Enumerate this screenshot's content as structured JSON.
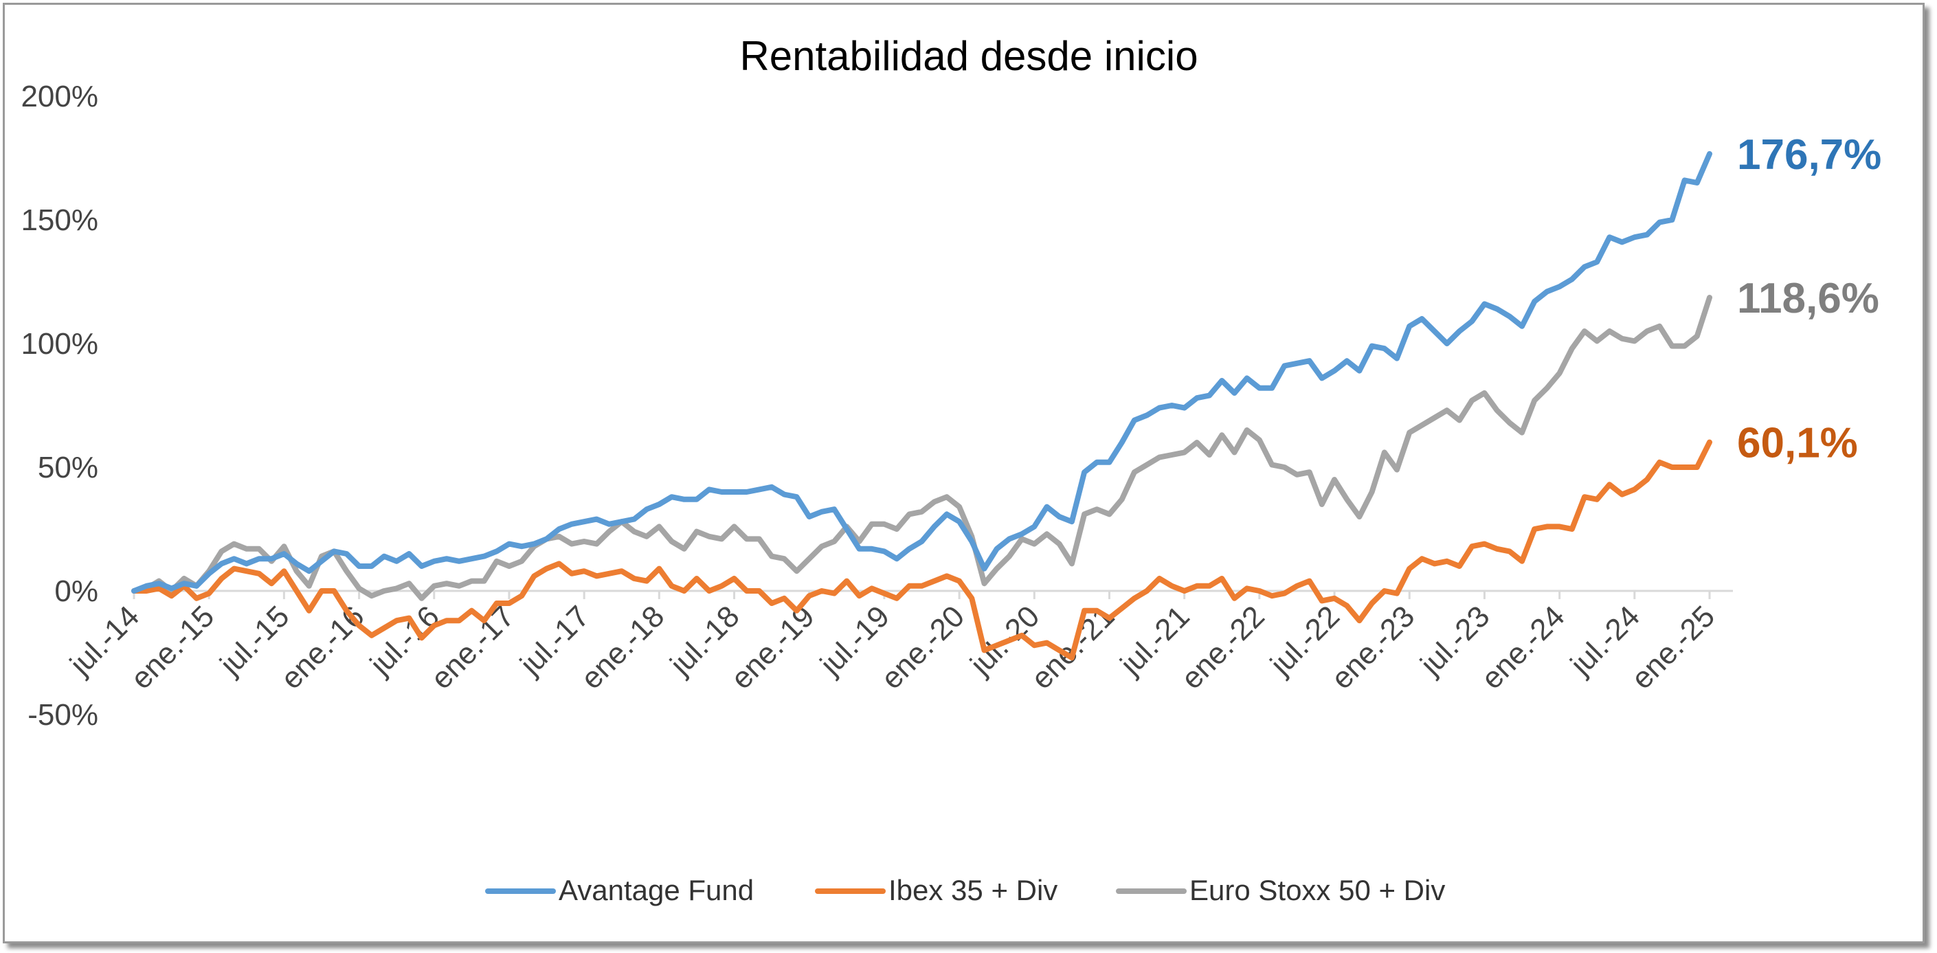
{
  "chart_data": {
    "type": "line",
    "title": "Rentabilidad desde inicio",
    "xlabel": "",
    "ylabel": "",
    "ylim": [
      -0.5,
      2.0
    ],
    "yticks": [
      "200%",
      "150%",
      "100%",
      "50%",
      "0%",
      "-50%"
    ],
    "yticks_values": [
      2.0,
      1.5,
      1.0,
      0.5,
      0.0,
      -0.5
    ],
    "xtick_labels": [
      "jul.-14",
      "ene.-15",
      "jul.-15",
      "ene.-16",
      "jul.-16",
      "ene.-17",
      "jul.-17",
      "ene.-18",
      "jul.-18",
      "ene.-19",
      "jul.-19",
      "ene.-20",
      "jul.-20",
      "ene.-21",
      "jul.-21",
      "ene.-22",
      "jul.-22",
      "ene.-23",
      "jul.-23",
      "ene.-24",
      "jul.-24",
      "ene.-25"
    ],
    "x_start": "2014-07",
    "x_end": "2025-01",
    "grid": false,
    "legend_position": "bottom",
    "series": [
      {
        "name": "Avantage Fund",
        "color": "#5B9BD5",
        "end_label": "176,7%",
        "end_label_color": "#2E75B6",
        "values": [
          0.0,
          0.02,
          0.03,
          0.01,
          0.03,
          0.02,
          0.07,
          0.11,
          0.13,
          0.11,
          0.13,
          0.13,
          0.15,
          0.11,
          0.08,
          0.12,
          0.16,
          0.15,
          0.1,
          0.1,
          0.14,
          0.12,
          0.15,
          0.1,
          0.12,
          0.13,
          0.12,
          0.13,
          0.14,
          0.16,
          0.19,
          0.18,
          0.19,
          0.21,
          0.25,
          0.27,
          0.28,
          0.29,
          0.27,
          0.28,
          0.29,
          0.33,
          0.35,
          0.38,
          0.37,
          0.37,
          0.41,
          0.4,
          0.4,
          0.4,
          0.41,
          0.42,
          0.39,
          0.38,
          0.3,
          0.32,
          0.33,
          0.25,
          0.17,
          0.17,
          0.16,
          0.13,
          0.17,
          0.2,
          0.26,
          0.31,
          0.28,
          0.2,
          0.09,
          0.17,
          0.21,
          0.23,
          0.26,
          0.34,
          0.3,
          0.28,
          0.48,
          0.52,
          0.52,
          0.6,
          0.69,
          0.71,
          0.74,
          0.75,
          0.74,
          0.78,
          0.79,
          0.85,
          0.8,
          0.86,
          0.82,
          0.82,
          0.91,
          0.92,
          0.93,
          0.86,
          0.89,
          0.93,
          0.89,
          0.99,
          0.98,
          0.94,
          1.07,
          1.1,
          1.05,
          1.0,
          1.05,
          1.09,
          1.16,
          1.14,
          1.11,
          1.07,
          1.17,
          1.21,
          1.23,
          1.26,
          1.31,
          1.33,
          1.43,
          1.41,
          1.43,
          1.44,
          1.49,
          1.5,
          1.66,
          1.65,
          1.767
        ]
      },
      {
        "name": "Ibex 35 + Div",
        "color": "#ED7D31",
        "end_label": "60,1%",
        "end_label_color": "#C55A11",
        "values": [
          0.0,
          0.0,
          0.01,
          -0.02,
          0.02,
          -0.03,
          -0.01,
          0.05,
          0.09,
          0.08,
          0.07,
          0.03,
          0.08,
          0.0,
          -0.08,
          0.0,
          0.0,
          -0.08,
          -0.14,
          -0.18,
          -0.15,
          -0.12,
          -0.11,
          -0.19,
          -0.14,
          -0.12,
          -0.12,
          -0.08,
          -0.12,
          -0.05,
          -0.05,
          -0.02,
          0.06,
          0.09,
          0.11,
          0.07,
          0.08,
          0.06,
          0.07,
          0.08,
          0.05,
          0.04,
          0.09,
          0.02,
          0.0,
          0.05,
          0.0,
          0.02,
          0.05,
          0.0,
          0.0,
          -0.05,
          -0.03,
          -0.08,
          -0.02,
          0.0,
          -0.01,
          0.04,
          -0.02,
          0.01,
          -0.01,
          -0.03,
          0.02,
          0.02,
          0.04,
          0.06,
          0.04,
          -0.03,
          -0.24,
          -0.22,
          -0.2,
          -0.18,
          -0.22,
          -0.21,
          -0.24,
          -0.27,
          -0.08,
          -0.08,
          -0.11,
          -0.07,
          -0.03,
          0.0,
          0.05,
          0.02,
          0.0,
          0.02,
          0.02,
          0.05,
          -0.03,
          0.01,
          0.0,
          -0.02,
          -0.01,
          0.02,
          0.04,
          -0.04,
          -0.03,
          -0.06,
          -0.12,
          -0.05,
          0.0,
          -0.01,
          0.09,
          0.13,
          0.11,
          0.12,
          0.1,
          0.18,
          0.19,
          0.17,
          0.16,
          0.12,
          0.25,
          0.26,
          0.26,
          0.25,
          0.38,
          0.37,
          0.43,
          0.39,
          0.41,
          0.45,
          0.52,
          0.5,
          0.5,
          0.5,
          0.601
        ]
      },
      {
        "name": "Euro Stoxx 50 + Div",
        "color": "#A5A5A5",
        "end_label": "118,6%",
        "end_label_color": "#7F7F7F",
        "values": [
          0.0,
          0.01,
          0.04,
          0.0,
          0.05,
          0.02,
          0.08,
          0.16,
          0.19,
          0.17,
          0.17,
          0.12,
          0.18,
          0.08,
          0.02,
          0.14,
          0.16,
          0.08,
          0.01,
          -0.02,
          0.0,
          0.01,
          0.03,
          -0.03,
          0.02,
          0.03,
          0.02,
          0.04,
          0.04,
          0.12,
          0.1,
          0.12,
          0.18,
          0.21,
          0.22,
          0.19,
          0.2,
          0.19,
          0.24,
          0.28,
          0.24,
          0.22,
          0.26,
          0.2,
          0.17,
          0.24,
          0.22,
          0.21,
          0.26,
          0.21,
          0.21,
          0.14,
          0.13,
          0.08,
          0.13,
          0.18,
          0.2,
          0.26,
          0.2,
          0.27,
          0.27,
          0.25,
          0.31,
          0.32,
          0.36,
          0.38,
          0.34,
          0.22,
          0.03,
          0.09,
          0.14,
          0.21,
          0.19,
          0.23,
          0.19,
          0.11,
          0.31,
          0.33,
          0.31,
          0.37,
          0.48,
          0.51,
          0.54,
          0.55,
          0.56,
          0.6,
          0.55,
          0.63,
          0.56,
          0.65,
          0.61,
          0.51,
          0.5,
          0.47,
          0.48,
          0.35,
          0.45,
          0.37,
          0.3,
          0.4,
          0.56,
          0.49,
          0.64,
          0.67,
          0.7,
          0.73,
          0.69,
          0.77,
          0.8,
          0.73,
          0.68,
          0.64,
          0.77,
          0.82,
          0.88,
          0.98,
          1.05,
          1.01,
          1.05,
          1.02,
          1.01,
          1.05,
          1.07,
          0.99,
          0.99,
          1.03,
          1.186
        ]
      }
    ]
  }
}
